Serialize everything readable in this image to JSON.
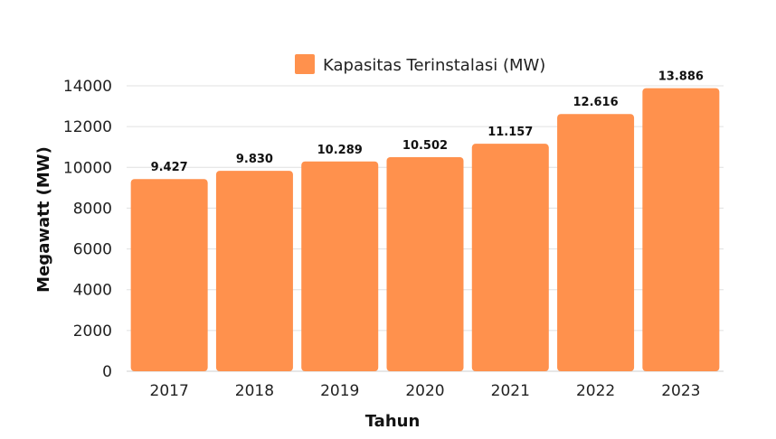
{
  "chart_data": {
    "type": "bar",
    "categories": [
      "2017",
      "2018",
      "2019",
      "2020",
      "2021",
      "2022",
      "2023"
    ],
    "series": [
      {
        "name": "Kapasitas Terinstalasi (MW)",
        "values": [
          9427,
          9830,
          10289,
          10502,
          11157,
          12616,
          13886
        ],
        "labels": [
          "9.427",
          "9.830",
          "10.289",
          "10.502",
          "11.157",
          "12.616",
          "13.886"
        ]
      }
    ],
    "xlabel": "Tahun",
    "ylabel": "Megawatt (MW)",
    "ylim": [
      0,
      14000
    ],
    "yticks": [
      "0",
      "2000",
      "4000",
      "6000",
      "8000",
      "10000",
      "12000",
      "14000"
    ],
    "grid": true,
    "legend_position": "top-center",
    "bar_color": "#FF914D",
    "grid_color": "#E0E0E0"
  }
}
